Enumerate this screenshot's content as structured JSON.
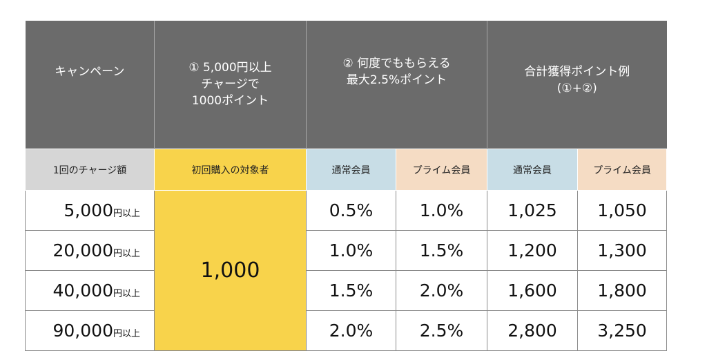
{
  "header": {
    "campaign": "キャンペーン",
    "first_charge": "① 5,000円以上\nチャージで\n1000ポイント",
    "repeat_points": "② 何度でももらえる\n最大2.5%ポイント",
    "total_example": "合計獲得ポイント例\n(①+②)"
  },
  "subheader": {
    "charge_amount": "1回のチャージ額",
    "first_purchase_target": "初回購入の対象者",
    "regular_member": "通常会員",
    "prime_member": "プライム会員",
    "regular_member_total": "通常会員",
    "prime_member_total": "プライム会員"
  },
  "bonus_points": "1,000",
  "unit_label": "円以上",
  "rows": [
    {
      "amount": "5,000",
      "regular_rate": "0.5%",
      "prime_rate": "1.0%",
      "regular_total": "1,025",
      "prime_total": "1,050"
    },
    {
      "amount": "20,000",
      "regular_rate": "1.0%",
      "prime_rate": "1.5%",
      "regular_total": "1,200",
      "prime_total": "1,300"
    },
    {
      "amount": "40,000",
      "regular_rate": "1.5%",
      "prime_rate": "2.0%",
      "regular_total": "1,600",
      "prime_total": "1,800"
    },
    {
      "amount": "90,000",
      "regular_rate": "2.0%",
      "prime_rate": "2.5%",
      "regular_total": "2,800",
      "prime_total": "3,250"
    }
  ],
  "colors": {
    "header_bg": "#6b6b6b",
    "charge_bg": "#d6d6d6",
    "first_purchase_bg": "#f8d34b",
    "regular_bg": "#c8dde6",
    "prime_bg": "#f5dcc4"
  }
}
